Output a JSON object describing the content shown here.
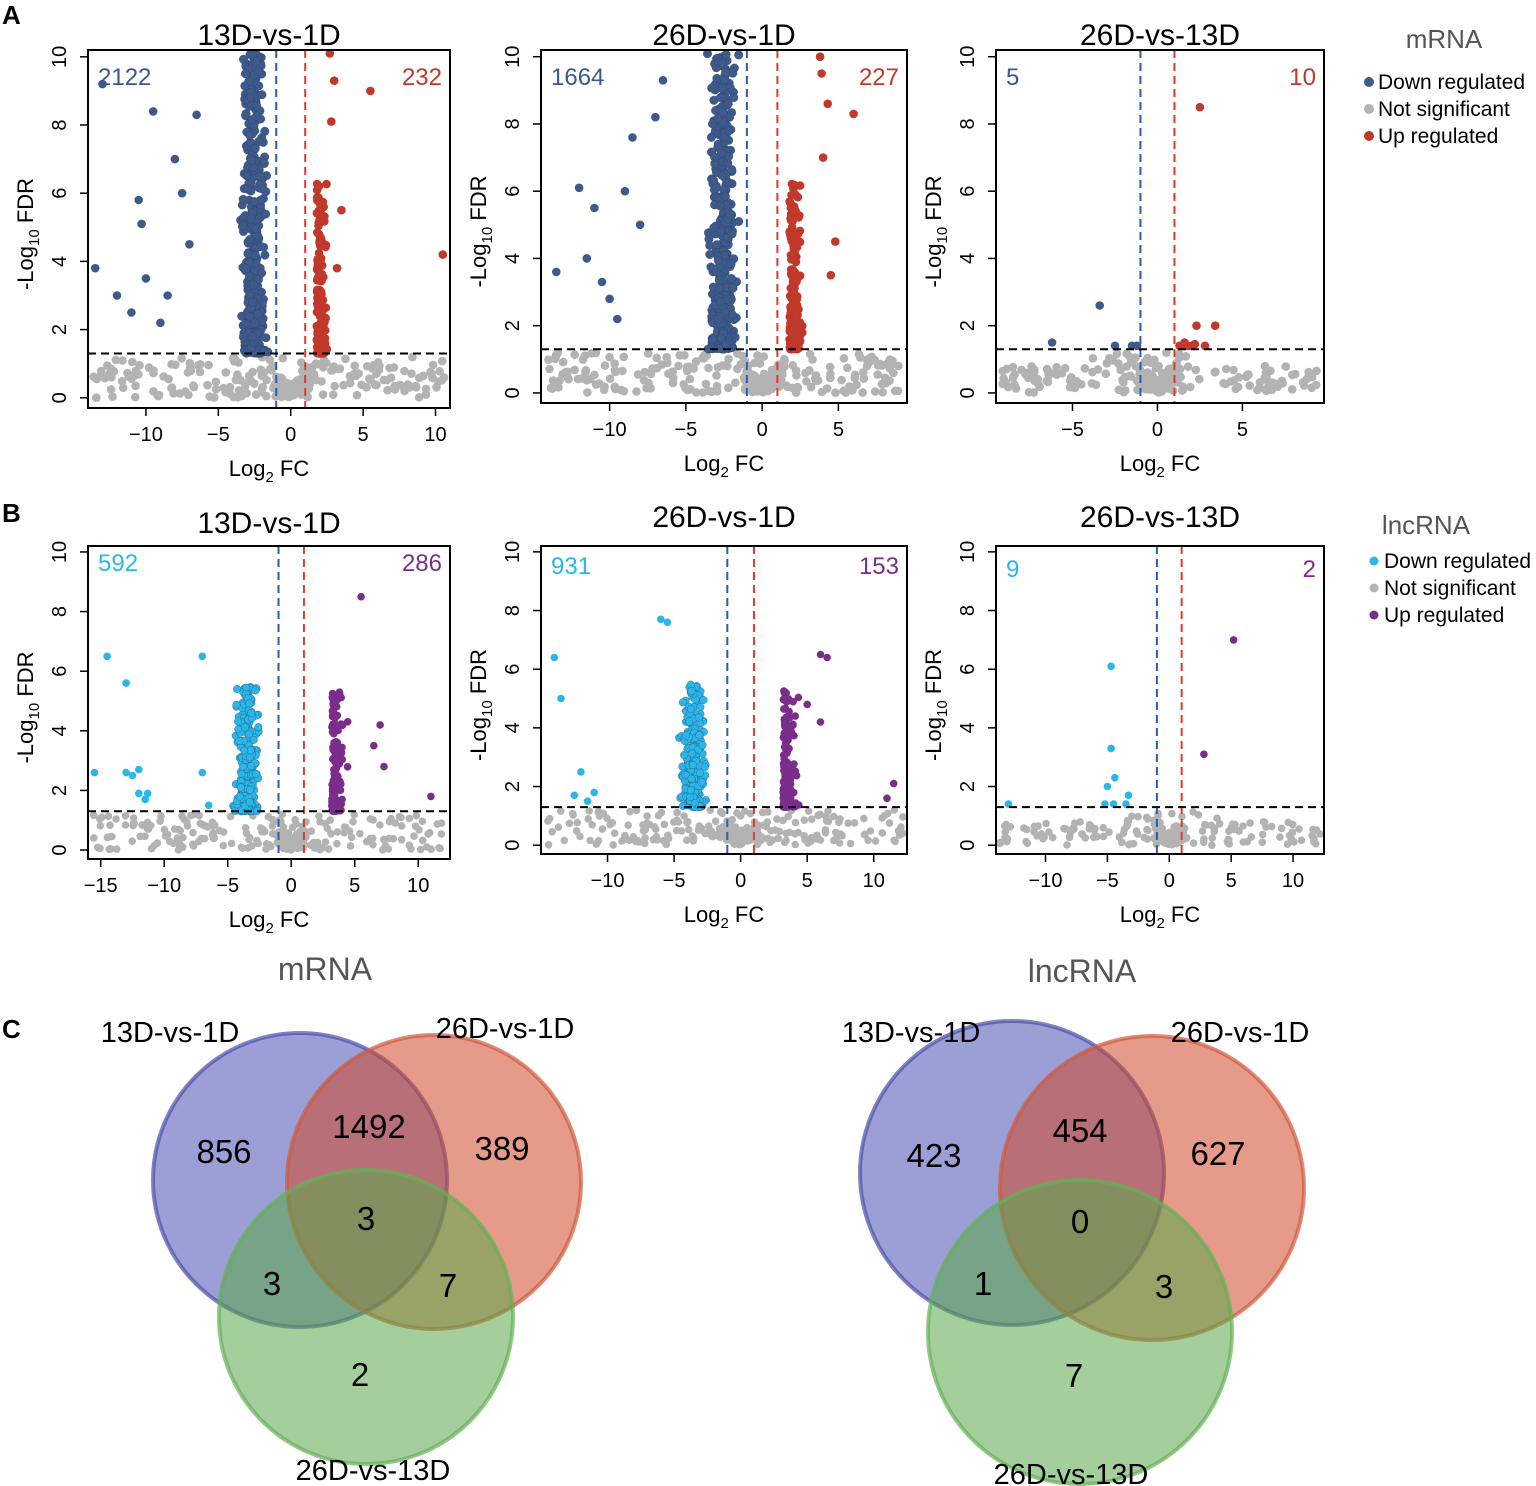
{
  "panel_letters": {
    "a": "A",
    "b": "B",
    "c": "C"
  },
  "legends": {
    "mrna": {
      "title": "mRNA",
      "items": [
        {
          "label": "Down regulated",
          "color": "#3d5a8a"
        },
        {
          "label": "Not significant",
          "color": "#b3b3b3"
        },
        {
          "label": "Up regulated",
          "color": "#c0392b"
        }
      ]
    },
    "lncrna": {
      "title": "lncRNA",
      "items": [
        {
          "label": "Down regulated",
          "color": "#29b6e8"
        },
        {
          "label": "Not significant",
          "color": "#b3b3b3"
        },
        {
          "label": "Up regulated",
          "color": "#7b2d8b"
        }
      ]
    }
  },
  "axis_text": {
    "xlabel_main": "Log",
    "xlabel_sub": "2",
    "xlabel_rest": " FC",
    "ylabel_main": "-Log",
    "ylabel_sub": "10",
    "ylabel_rest": " FDR"
  },
  "chart_data": [
    {
      "type": "scatter",
      "id": "mrna-13D-vs-1D",
      "title": "13D-vs-1D",
      "rna": "mRNA",
      "xlim": [
        -14,
        11
      ],
      "ylim": [
        -0.3,
        10.2
      ],
      "xticks": [
        -10,
        -5,
        0,
        5,
        10
      ],
      "yticks": [
        0,
        2,
        4,
        6,
        8,
        10
      ],
      "fc_threshold": [
        -1,
        1
      ],
      "fdr_threshold": 1.3,
      "down_count": "2122",
      "up_count": "232",
      "down_color": "#3d5a8a",
      "up_color": "#c0392b",
      "down_outliers": [
        [
          -13.5,
          3.8
        ],
        [
          -13,
          9.2
        ],
        [
          -10.5,
          5.8
        ],
        [
          -10.3,
          5.1
        ],
        [
          -9.5,
          8.4
        ],
        [
          -8,
          7
        ],
        [
          -9,
          2.2
        ],
        [
          -10,
          3.5
        ],
        [
          -7.5,
          6
        ],
        [
          -12,
          3
        ],
        [
          -11,
          2.5
        ],
        [
          -6.5,
          8.3
        ],
        [
          -7,
          4.5
        ],
        [
          -8.5,
          3
        ]
      ],
      "up_outliers": [
        [
          10.5,
          4.2
        ],
        [
          5.5,
          9
        ],
        [
          3,
          9.3
        ],
        [
          2.7,
          10.1
        ],
        [
          3.5,
          5.5
        ],
        [
          3.2,
          3.8
        ],
        [
          2.8,
          8.1
        ]
      ]
    },
    {
      "type": "scatter",
      "id": "mrna-26D-vs-1D",
      "title": "26D-vs-1D",
      "rna": "mRNA",
      "xlim": [
        -14.5,
        9.5
      ],
      "ylim": [
        -0.3,
        10.2
      ],
      "xticks": [
        -10,
        -5,
        0,
        5
      ],
      "yticks": [
        0,
        2,
        4,
        6,
        8,
        10
      ],
      "fc_threshold": [
        -1,
        1
      ],
      "fdr_threshold": 1.3,
      "down_count": "1664",
      "up_count": "227",
      "down_color": "#3d5a8a",
      "up_color": "#c0392b",
      "down_outliers": [
        [
          -13.5,
          3.6
        ],
        [
          -12,
          6.1
        ],
        [
          -11.5,
          4
        ],
        [
          -10.5,
          3.3
        ],
        [
          -10,
          2.8
        ],
        [
          -9,
          6
        ],
        [
          -8.5,
          7.6
        ],
        [
          -8,
          5
        ],
        [
          -11,
          5.5
        ],
        [
          -9.5,
          2.2
        ],
        [
          -7,
          8.2
        ],
        [
          -6.5,
          9.3
        ]
      ],
      "up_outliers": [
        [
          6,
          8.3
        ],
        [
          4.3,
          8.6
        ],
        [
          3.8,
          10
        ],
        [
          3.9,
          9.5
        ],
        [
          4.5,
          3.5
        ],
        [
          4,
          7
        ],
        [
          4.8,
          4.5
        ]
      ]
    },
    {
      "type": "scatter",
      "id": "mrna-26D-vs-13D",
      "title": "26D-vs-13D",
      "rna": "mRNA",
      "xlim": [
        -9.5,
        9.8
      ],
      "ylim": [
        -0.3,
        10.2
      ],
      "xticks": [
        -5,
        0,
        5
      ],
      "yticks": [
        0,
        2,
        4,
        6,
        8,
        10
      ],
      "fc_threshold": [
        -1,
        1
      ],
      "fdr_threshold": 1.3,
      "down_count": "5",
      "up_count": "10",
      "down_color": "#3d5a8a",
      "up_color": "#c0392b",
      "down_outliers": [
        [
          -3.4,
          2.6
        ],
        [
          -6.2,
          1.5
        ],
        [
          -2.5,
          1.4
        ],
        [
          -1.5,
          1.4
        ],
        [
          -1.2,
          1.4
        ]
      ],
      "up_outliers": [
        [
          2.5,
          8.5
        ],
        [
          2.3,
          2
        ],
        [
          3.4,
          2
        ],
        [
          1.5,
          1.4
        ],
        [
          1.8,
          1.4
        ],
        [
          2,
          1.4
        ],
        [
          2.2,
          1.45
        ],
        [
          1.3,
          1.4
        ],
        [
          2.8,
          1.4
        ],
        [
          1.6,
          1.5
        ]
      ]
    },
    {
      "type": "scatter",
      "id": "lnc-13D-vs-1D",
      "title": "13D-vs-1D",
      "rna": "lncRNA",
      "xlim": [
        -16,
        12.5
      ],
      "ylim": [
        -0.3,
        10.2
      ],
      "xticks": [
        -15,
        -10,
        -5,
        0,
        5,
        10
      ],
      "yticks": [
        0,
        2,
        4,
        6,
        8,
        10
      ],
      "fc_threshold": [
        -1,
        1
      ],
      "fdr_threshold": 1.3,
      "down_count": "592",
      "up_count": "286",
      "down_color": "#29b6e8",
      "up_color": "#7b2d8b",
      "down_outliers": [
        [
          -14.5,
          6.5
        ],
        [
          -15.5,
          2.6
        ],
        [
          -13,
          5.6
        ],
        [
          -13,
          2.6
        ],
        [
          -12.5,
          2.5
        ],
        [
          -12,
          2.7
        ],
        [
          -12,
          1.9
        ],
        [
          -11.5,
          1.7
        ],
        [
          -11.3,
          1.9
        ],
        [
          -7,
          6.5
        ],
        [
          -7,
          2.6
        ],
        [
          -6.5,
          1.5
        ]
      ],
      "up_outliers": [
        [
          5.5,
          8.5
        ],
        [
          11,
          1.8
        ],
        [
          6.5,
          3.5
        ],
        [
          7,
          4.2
        ],
        [
          7.3,
          2.8
        ]
      ]
    },
    {
      "type": "scatter",
      "id": "lnc-26D-vs-1D",
      "title": "26D-vs-1D",
      "rna": "lncRNA",
      "xlim": [
        -15,
        12.5
      ],
      "ylim": [
        -0.3,
        10.2
      ],
      "xticks": [
        -10,
        -5,
        0,
        5,
        10
      ],
      "yticks": [
        0,
        2,
        4,
        6,
        8,
        10
      ],
      "fc_threshold": [
        -1,
        1
      ],
      "fdr_threshold": 1.3,
      "down_count": "931",
      "up_count": "153",
      "down_color": "#29b6e8",
      "up_color": "#7b2d8b",
      "down_outliers": [
        [
          -14,
          6.4
        ],
        [
          -13.5,
          5
        ],
        [
          -12,
          2.5
        ],
        [
          -11.5,
          1.5
        ],
        [
          -12.5,
          1.7
        ],
        [
          -11,
          1.8
        ],
        [
          -6,
          7.7
        ],
        [
          -5.5,
          7.6
        ]
      ],
      "up_outliers": [
        [
          6,
          6.5
        ],
        [
          6.5,
          6.4
        ],
        [
          6,
          4.2
        ],
        [
          11,
          1.6
        ],
        [
          11.5,
          2.1
        ],
        [
          5,
          4.8
        ]
      ]
    },
    {
      "type": "scatter",
      "id": "lnc-26D-vs-13D",
      "title": "26D-vs-13D",
      "rna": "lncRNA",
      "xlim": [
        -14,
        12.5
      ],
      "ylim": [
        -0.3,
        10.2
      ],
      "xticks": [
        -10,
        -5,
        0,
        5,
        10
      ],
      "yticks": [
        0,
        2,
        4,
        6,
        8,
        10
      ],
      "fc_threshold": [
        -1,
        1
      ],
      "fdr_threshold": 1.3,
      "down_count": "9",
      "up_count": "2",
      "down_color": "#29b6e8",
      "up_color": "#7b2d8b",
      "down_outliers": [
        [
          -4.7,
          6.1
        ],
        [
          -4.7,
          3.3
        ],
        [
          -4.4,
          2.3
        ],
        [
          -5,
          2
        ],
        [
          -3.3,
          1.7
        ],
        [
          -4.5,
          1.4
        ],
        [
          -3.5,
          1.4
        ],
        [
          -13,
          1.4
        ],
        [
          -5.2,
          1.4
        ]
      ],
      "up_outliers": [
        [
          5.2,
          7
        ],
        [
          2.8,
          3.1
        ]
      ]
    },
    {
      "type": "venn",
      "id": "venn-mrna",
      "title": "mRNA",
      "sets": [
        "13D-vs-1D",
        "26D-vs-1D",
        "26D-vs-13D"
      ],
      "set_colors": [
        "#4b4fb5",
        "#d1482a",
        "#5aa84a"
      ],
      "regions": {
        "only_a": "856",
        "only_b": "389",
        "only_c": "2",
        "ab": "1492",
        "ac": "3",
        "bc": "7",
        "abc": "3"
      }
    },
    {
      "type": "venn",
      "id": "venn-lncrna",
      "title": "lncRNA",
      "sets": [
        "13D-vs-1D",
        "26D-vs-1D",
        "26D-vs-13D"
      ],
      "set_colors": [
        "#4b4fb5",
        "#d1482a",
        "#5aa84a"
      ],
      "regions": {
        "only_a": "423",
        "only_b": "627",
        "only_c": "7",
        "ab": "454",
        "ac": "1",
        "bc": "3",
        "abc": "0"
      }
    }
  ]
}
